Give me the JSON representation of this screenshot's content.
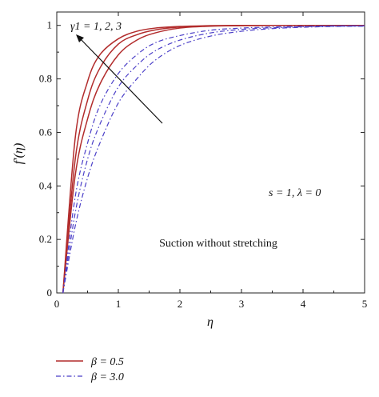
{
  "chart_data": {
    "type": "line",
    "title": "",
    "xlabel": "η",
    "ylabel": "f′(η)",
    "xlim": [
      0,
      5
    ],
    "ylim": [
      0,
      1.05
    ],
    "xticks": [
      0,
      1,
      2,
      3,
      4,
      5
    ],
    "yticks": [
      0,
      0.2,
      0.4,
      0.6,
      0.8,
      1
    ],
    "xtick_labels": [
      "0",
      "1",
      "2",
      "3",
      "4",
      "5"
    ],
    "ytick_labels": [
      "0",
      "0.2",
      "0.4",
      "0.6",
      "0.8",
      "1"
    ],
    "grid": false,
    "legend_position": "bottom-left",
    "legend": [
      {
        "label": "β = 0.5",
        "color": "#b22c2c",
        "style": "solid"
      },
      {
        "label": "β = 3.0",
        "color": "#4b3fc8",
        "style": "dash-dot"
      }
    ],
    "annotations": {
      "gamma": "γ1 = 1, 2, 3",
      "params": "s = 1, λ = 0",
      "case": "Suction without stretching"
    },
    "x": [
      0.1,
      0.3,
      0.5,
      0.7,
      1.0,
      1.3,
      1.6,
      2.0,
      2.5,
      3.0,
      3.5,
      4.0,
      4.5,
      5.0
    ],
    "series": [
      {
        "group": "β = 0.5",
        "gamma1": 1,
        "color": "#b22c2c",
        "style": "solid",
        "values": [
          0.0,
          0.58,
          0.79,
          0.89,
          0.95,
          0.978,
          0.99,
          0.996,
          0.999,
          1.0,
          1.0,
          1.0,
          1.0,
          1.0
        ]
      },
      {
        "group": "β = 0.5",
        "gamma1": 2,
        "color": "#b22c2c",
        "style": "solid",
        "values": [
          0.0,
          0.5,
          0.72,
          0.84,
          0.93,
          0.965,
          0.983,
          0.994,
          0.998,
          0.999,
          1.0,
          1.0,
          1.0,
          1.0
        ]
      },
      {
        "group": "β = 0.5",
        "gamma1": 3,
        "color": "#b22c2c",
        "style": "solid",
        "values": [
          0.0,
          0.44,
          0.65,
          0.78,
          0.89,
          0.945,
          0.972,
          0.99,
          0.997,
          0.999,
          1.0,
          1.0,
          1.0,
          1.0
        ]
      },
      {
        "group": "β = 3.0",
        "gamma1": 1,
        "color": "#4b3fc8",
        "style": "dash-dot",
        "values": [
          0.0,
          0.36,
          0.56,
          0.7,
          0.82,
          0.89,
          0.935,
          0.962,
          0.982,
          0.99,
          0.994,
          0.996,
          0.998,
          0.998
        ]
      },
      {
        "group": "β = 3.0",
        "gamma1": 2,
        "color": "#4b3fc8",
        "style": "dash-dot",
        "values": [
          0.0,
          0.3,
          0.5,
          0.63,
          0.77,
          0.85,
          0.905,
          0.945,
          0.972,
          0.985,
          0.991,
          0.995,
          0.997,
          0.998
        ]
      },
      {
        "group": "β = 3.0",
        "gamma1": 3,
        "color": "#4b3fc8",
        "style": "dash-dot",
        "values": [
          0.0,
          0.25,
          0.43,
          0.56,
          0.71,
          0.8,
          0.87,
          0.925,
          0.96,
          0.978,
          0.988,
          0.993,
          0.996,
          0.997
        ]
      }
    ]
  }
}
